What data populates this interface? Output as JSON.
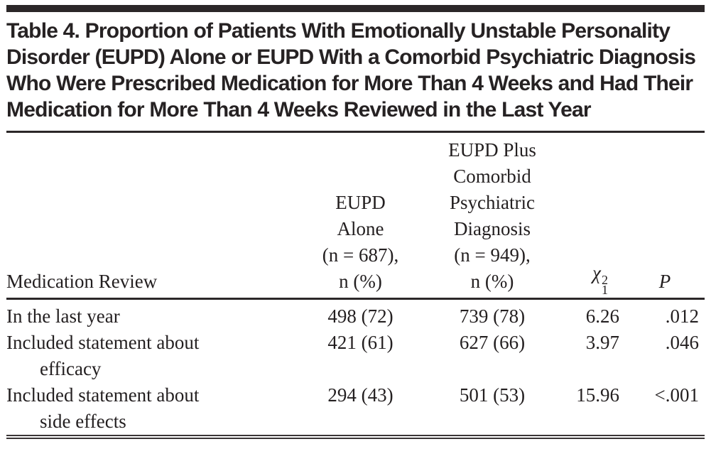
{
  "colors": {
    "text": "#231f20",
    "rule": "#2b2728",
    "background": "#ffffff"
  },
  "table": {
    "title": "Table 4. Proportion of Patients With Emotionally Unstable Personality Disorder (EUPD) Alone or EUPD With a Comorbid Psychiatric Diagnosis Who Were Prescribed Medication for More Than 4 Weeks and Had Their Medication for More Than 4 Weeks Reviewed in the Last Year",
    "columns": {
      "col1": "Medication Review",
      "col2": "EUPD\nAlone\n(n = 687),\nn (%)",
      "col3": "EUPD Plus\nComorbid\nPsychiatric\nDiagnosis\n(n = 949),\nn (%)",
      "col4": {
        "chi": "χ",
        "sup": "2",
        "sub": "1"
      },
      "col5": "P"
    },
    "rows": [
      {
        "label": "In the last year",
        "eupd_alone": "498 (72)",
        "eupd_comorbid": "739 (78)",
        "chi_square": "6.26",
        "p_value": ".012"
      },
      {
        "label": "Included statement about\nefficacy",
        "eupd_alone": "421 (61)",
        "eupd_comorbid": "627 (66)",
        "chi_square": "3.97",
        "p_value": ".046"
      },
      {
        "label": "Included statement about\nside effects",
        "eupd_alone": "294 (43)",
        "eupd_comorbid": "501 (53)",
        "chi_square": "15.96",
        "p_value": "<.001"
      }
    ]
  }
}
